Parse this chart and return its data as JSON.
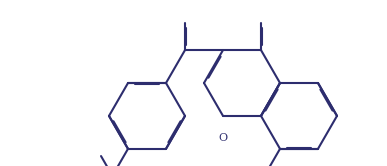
{
  "bg_color": "#ffffff",
  "line_color": "#2d2d6e",
  "line_width": 1.5,
  "dbo": 0.012,
  "figsize": [
    3.87,
    1.66
  ],
  "dpi": 100,
  "xlim": [
    0,
    3.87
  ],
  "ylim": [
    0,
    1.66
  ]
}
